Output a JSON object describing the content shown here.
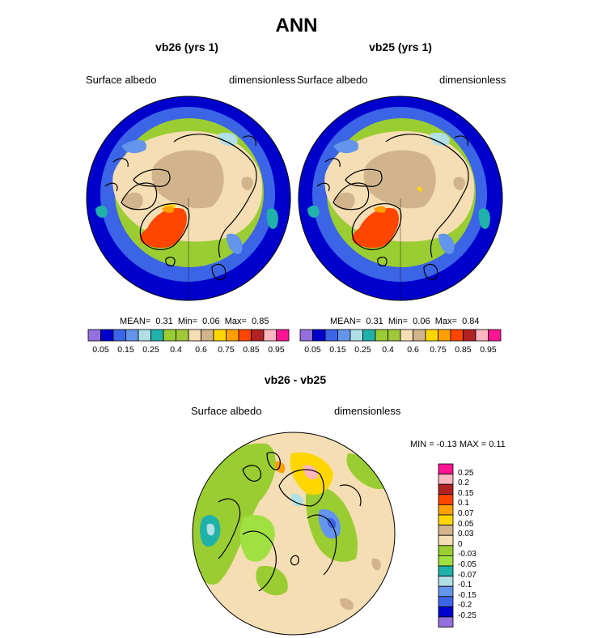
{
  "figure_title": "ANN",
  "panels": [
    {
      "title": "vb26 (yrs 1)",
      "left_label": "Surface albedo",
      "right_label": "dimensionless",
      "mean_label": "MEAN=",
      "mean": "0.31",
      "min_label": "Min=",
      "min": "0.06",
      "max_label": "Max=",
      "max": "0.85"
    },
    {
      "title": "vb25 (yrs 1)",
      "left_label": "Surface albedo",
      "right_label": "dimensionless",
      "mean_label": "MEAN=",
      "mean": "0.31",
      "min_label": "Min=",
      "min": "0.06",
      "max_label": "Max=",
      "max": "0.84"
    }
  ],
  "diff_panel": {
    "title": "vb26 - vb25",
    "left_label": "Surface albedo",
    "right_label": "dimensionless",
    "minmax_text": "MIN =  -0.13 MAX =   0.11"
  },
  "colorbar": {
    "colors": [
      "#9370db",
      "#0000cd",
      "#3c64e6",
      "#6495ed",
      "#b0e0e6",
      "#20b2aa",
      "#9acd32",
      "#a0c838",
      "#f5deb3",
      "#d2b48c",
      "#ffd700",
      "#ff9f00",
      "#ff4500",
      "#b22222",
      "#ffb6c1",
      "#ff1493"
    ],
    "labels": [
      "0.05",
      "0.15",
      "0.25",
      "0.4",
      "0.6",
      "0.75",
      "0.85",
      "0.95"
    ]
  },
  "diff_colorbar": {
    "colors": [
      "#ff1493",
      "#ffb6c1",
      "#b22222",
      "#ff4500",
      "#ff9f00",
      "#ffd700",
      "#d2b48c",
      "#f5deb3",
      "#9acd32",
      "#a0e040",
      "#20b2aa",
      "#b0e0e6",
      "#6495ed",
      "#3c64e6",
      "#0000cd",
      "#9370db"
    ],
    "labels": [
      "0.25",
      "0.2",
      "0.15",
      "0.1",
      "0.07",
      "0.05",
      "0.03",
      "0",
      "-0.03",
      "-0.05",
      "-0.07",
      "-0.1",
      "-0.15",
      "-0.2",
      "-0.25"
    ]
  }
}
